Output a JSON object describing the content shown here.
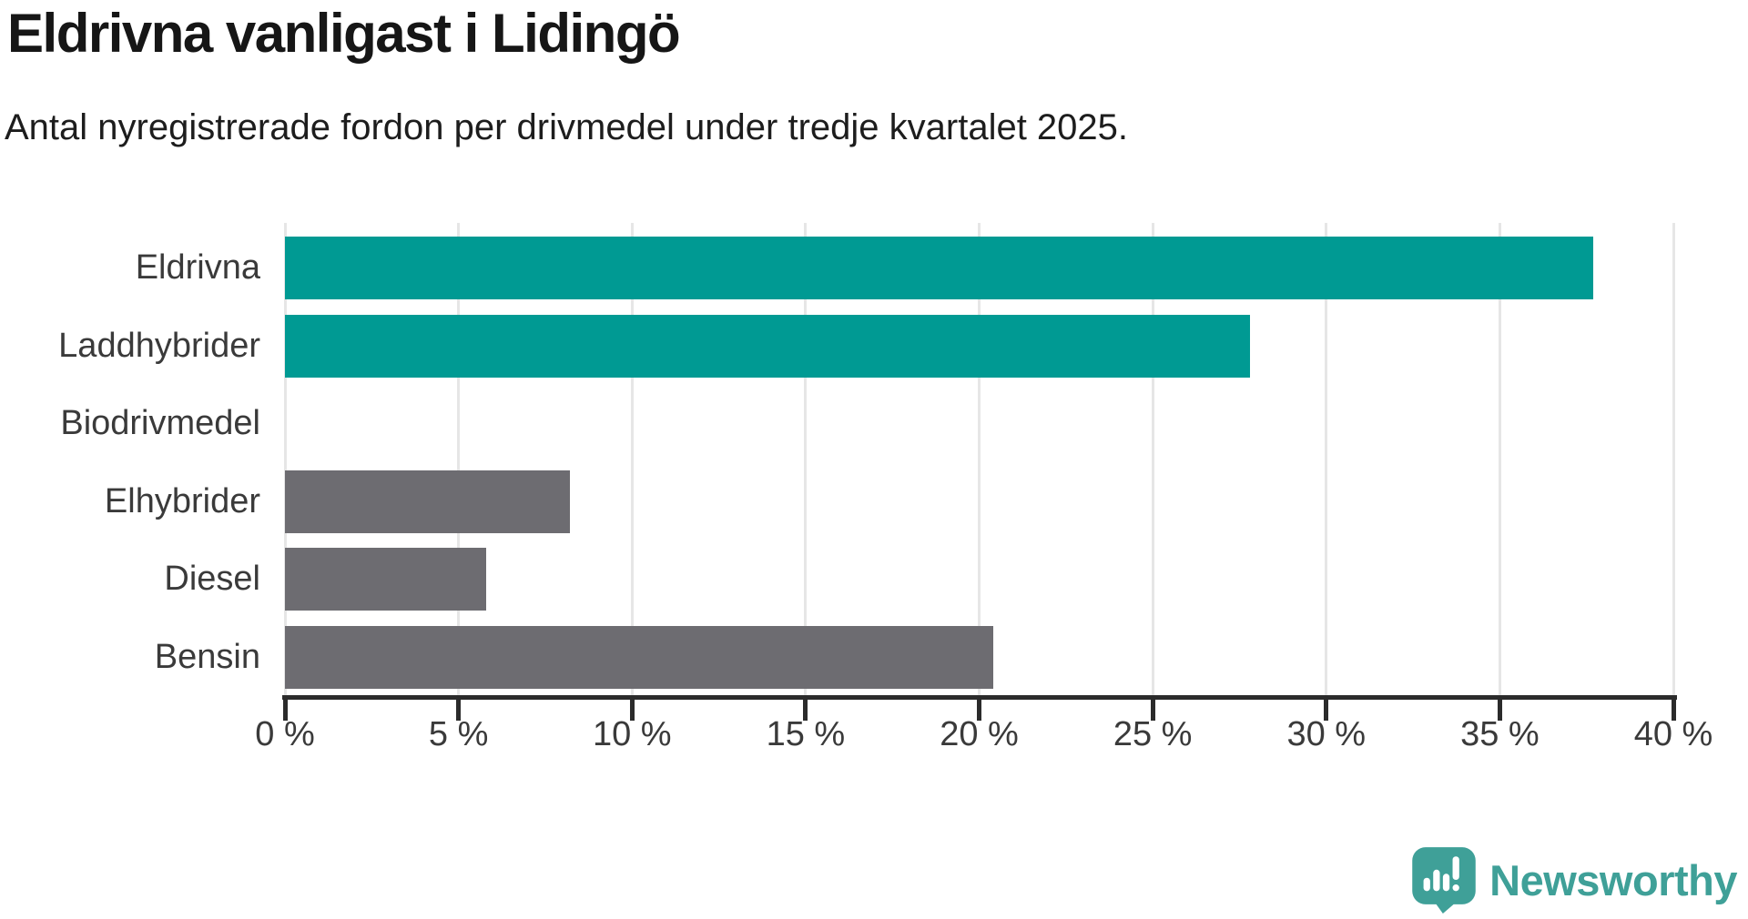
{
  "header": {
    "title": "Eldrivna vanligast i Lidingö",
    "subtitle": "Antal nyregistrerade fordon per drivmedel under tredje kvartalet 2025."
  },
  "chart_data": {
    "type": "bar",
    "orientation": "horizontal",
    "title": "Eldrivna vanligast i Lidingö",
    "subtitle": "Antal nyregistrerade fordon per drivmedel under tredje kvartalet 2025.",
    "categories": [
      "Eldrivna",
      "Laddhybrider",
      "Biodrivmedel",
      "Elhybrider",
      "Diesel",
      "Bensin"
    ],
    "values": [
      37.7,
      27.8,
      0,
      8.2,
      5.8,
      20.4
    ],
    "unit": "%",
    "highlighted": [
      true,
      true,
      false,
      false,
      false,
      false
    ],
    "highlight_color": "#009a93",
    "default_color": "#6d6c71",
    "xlim": [
      0,
      40
    ],
    "xticks": [
      0,
      5,
      10,
      15,
      20,
      25,
      30,
      35,
      40
    ],
    "xtick_labels": [
      "0 %",
      "5 %",
      "10 %",
      "15 %",
      "20 %",
      "25 %",
      "30 %",
      "35 %",
      "40 %"
    ],
    "xlabel": "",
    "ylabel": "",
    "grid": true,
    "legend": false
  },
  "footer": {
    "brand": "Newsworthy",
    "brand_color": "#3fa098",
    "logo_icon": "newsworthy-speech-bubble-chart-icon"
  },
  "colors": {
    "background": "#ffffff",
    "grid": "#e6e6e6",
    "axis": "#2b2b2b",
    "labels": "#3a3a3a",
    "title": "#161616"
  }
}
